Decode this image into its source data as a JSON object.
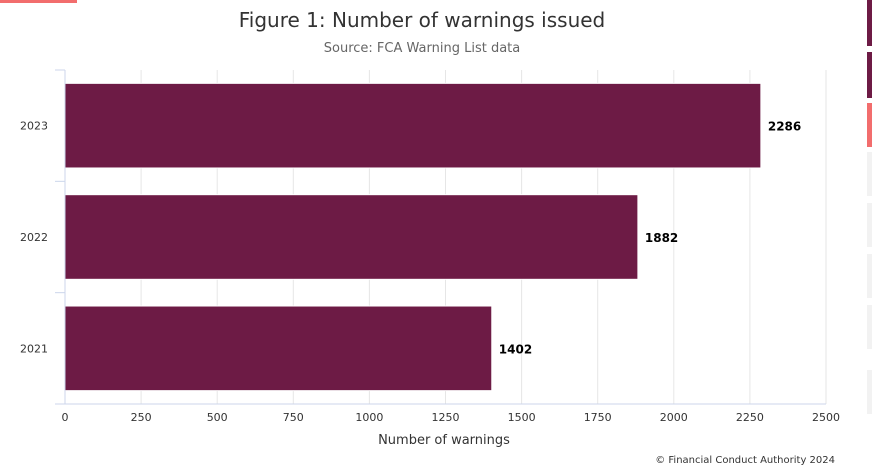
{
  "chart_data": {
    "type": "bar",
    "orientation": "horizontal",
    "title": "Figure 1: Number of warnings issued",
    "subtitle": "Source: FCA Warning List data",
    "categories": [
      "2023",
      "2022",
      "2021"
    ],
    "values": [
      2286,
      1882,
      1402
    ],
    "data_labels": [
      "2286",
      "1882",
      "1402"
    ],
    "xlabel": "Number of warnings",
    "ylabel": "",
    "xlim": [
      0,
      2500
    ],
    "xticks": [
      0,
      250,
      500,
      750,
      1000,
      1250,
      1500,
      1750,
      2000,
      2250,
      2500
    ],
    "xtick_labels": [
      "0",
      "250",
      "500",
      "750",
      "1000",
      "1250",
      "1500",
      "1750",
      "2000",
      "2250",
      "2500"
    ],
    "grid": true,
    "bar_color": "#6d1b45",
    "credit": "© Financial Conduct Authority 2024"
  },
  "colors": {
    "accent": "#6d1b45",
    "highlight": "#f26d6d",
    "grid": "#e6e6e6",
    "axis": "#ccd6eb"
  }
}
